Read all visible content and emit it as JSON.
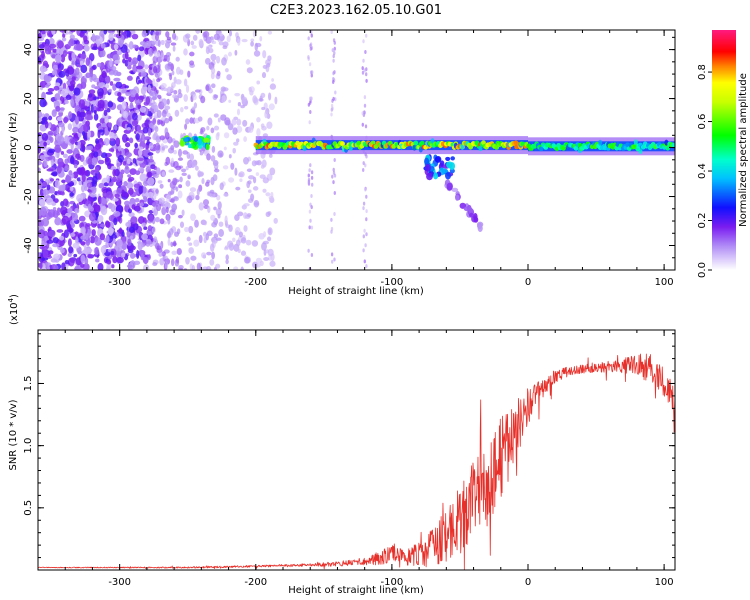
{
  "title": "C2E3.2023.162.05.10.G01",
  "colorbar": {
    "label": "Normalized spectral amplitude",
    "ticks": [
      "0.0",
      "0.2",
      "0.4",
      "0.6",
      "0.8"
    ],
    "tick_values": [
      0.0,
      0.2,
      0.4,
      0.6,
      0.8
    ],
    "range": [
      0,
      0.97
    ],
    "colors": [
      "#ffffff",
      "#a020f0",
      "#1010ff",
      "#00ffff",
      "#00ff00",
      "#ffff00",
      "#ff0000",
      "#ff1493"
    ]
  },
  "chart_data": [
    {
      "type": "heatmap",
      "xlabel": "Height of straight line (km)",
      "ylabel": "Frequency (Hz)",
      "xlim": [
        -360,
        108
      ],
      "ylim": [
        -50,
        48
      ],
      "xticks": [
        -300,
        -200,
        -100,
        0,
        100
      ],
      "xtick_labels": [
        "-300",
        "-200",
        "-100",
        "0",
        "100"
      ],
      "yticks": [
        -40,
        -20,
        0,
        20,
        40
      ],
      "ytick_labels": [
        "-40",
        "-20",
        "0",
        "20",
        "40"
      ],
      "regions": [
        {
          "x": [
            -360,
            -275
          ],
          "y": [
            -50,
            48
          ],
          "amplitude": 0.2,
          "pattern": "scattered noise"
        },
        {
          "x": [
            -275,
            -185
          ],
          "y": [
            -50,
            48
          ],
          "amplitude": 0.1,
          "pattern": "fading noise"
        },
        {
          "x": [
            -255,
            -235
          ],
          "y": [
            0,
            4
          ],
          "amplitude": 0.55,
          "pattern": "blob"
        },
        {
          "x": [
            -200,
            0
          ],
          "y": [
            -2,
            4
          ],
          "amplitude": 0.8,
          "pattern": "carrier band"
        },
        {
          "x": [
            0,
            108
          ],
          "y": [
            -2,
            3
          ],
          "amplitude": 0.55,
          "pattern": "carrier band"
        },
        {
          "x": [
            -75,
            -55
          ],
          "y": [
            -12,
            -4
          ],
          "amplitude": 0.35,
          "pattern": "blob"
        },
        {
          "x": [
            -60,
            -35
          ],
          "y": [
            -32,
            -14
          ],
          "amplitude": 0.15,
          "pattern": "tail"
        }
      ]
    },
    {
      "type": "line",
      "xlabel": "Height of straight line (km)",
      "ylabel": "SNR (10 * v/v)",
      "multiplier_label": "(x10",
      "multiplier_exp": "4",
      "multiplier_close": ")",
      "xlim": [
        -360,
        108
      ],
      "ylim": [
        0,
        1.93
      ],
      "xticks": [
        -300,
        -200,
        -100,
        0,
        100
      ],
      "xtick_labels": [
        "-300",
        "-200",
        "-100",
        "0",
        "100"
      ],
      "yticks": [
        0.5,
        1.0,
        1.5
      ],
      "ytick_labels": [
        "0.5",
        "1.0",
        "1.5"
      ],
      "color": "#e8302a",
      "series": [
        {
          "x": [
            -360,
            -300,
            -250,
            -200,
            -160,
            -140,
            -120,
            -110,
            -100,
            -90,
            -80,
            -70,
            -60,
            -50,
            -40,
            -30,
            -25,
            -20,
            -15,
            -10,
            -5,
            0,
            10,
            20,
            30,
            40,
            50,
            60,
            70,
            80,
            90,
            100,
            108
          ],
          "values": [
            0.02,
            0.02,
            0.02,
            0.03,
            0.04,
            0.05,
            0.07,
            0.1,
            0.12,
            0.1,
            0.12,
            0.18,
            0.28,
            0.4,
            0.55,
            0.7,
            0.8,
            0.9,
            1.0,
            1.1,
            1.2,
            1.32,
            1.45,
            1.55,
            1.6,
            1.62,
            1.63,
            1.64,
            1.64,
            1.65,
            1.62,
            1.5,
            1.35
          ],
          "noise": [
            0.003,
            0.004,
            0.006,
            0.008,
            0.012,
            0.02,
            0.03,
            0.06,
            0.08,
            0.06,
            0.1,
            0.15,
            0.22,
            0.28,
            0.32,
            0.35,
            0.35,
            0.32,
            0.3,
            0.25,
            0.2,
            0.15,
            0.08,
            0.05,
            0.04,
            0.04,
            0.04,
            0.05,
            0.06,
            0.1,
            0.12,
            0.12,
            0.12
          ]
        }
      ]
    }
  ]
}
